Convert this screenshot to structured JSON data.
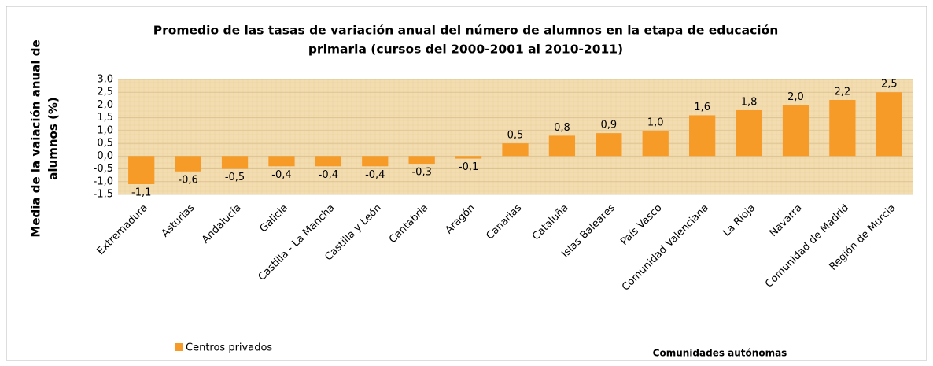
{
  "chart_data": {
    "type": "bar",
    "title": [
      "Promedio de las tasas de variación anual  del número  de alumnos en la etapa de educación",
      "primaria (cursos del 2000-2001 al 2010-2011)"
    ],
    "ylabel": [
      "Media de la vaiación anual de",
      "alumnos (%)"
    ],
    "xlabel": "Comunidades autónomas",
    "categories": [
      "Extremadura",
      "Asturias",
      "Andalucía",
      "Galicia",
      "Castilla -  La Mancha",
      "Castilla y León",
      "Cantabria",
      "Aragón",
      "Canarias",
      "Cataluña",
      "Islas Baleares",
      "País Vasco",
      "Comunidad Valenciana",
      "La Rioja",
      "Navarra",
      "Comunidad de Madrid",
      "Región de Murcia"
    ],
    "series": [
      {
        "name": "Centros privados",
        "color": "#f79b28",
        "values": [
          -1.1,
          -0.6,
          -0.5,
          -0.4,
          -0.4,
          -0.4,
          -0.3,
          -0.1,
          0.5,
          0.8,
          0.9,
          1.0,
          1.6,
          1.8,
          2.0,
          2.2,
          2.5
        ],
        "value_labels": [
          "-1,1",
          "-0,6",
          "-0,5",
          "-0,4",
          "-0,4",
          "-0,4",
          "-0,3",
          "-0,1",
          "0,5",
          "0,8",
          "0,9",
          "1,0",
          "1,6",
          "1,8",
          "2,0",
          "2,2",
          "2,5"
        ]
      }
    ],
    "ylim": [
      -1.5,
      3.0
    ],
    "yticks": [
      {
        "value": -1.5,
        "label": "-1,5"
      },
      {
        "value": -1.0,
        "label": "-1,0"
      },
      {
        "value": -0.5,
        "label": "-0,5"
      },
      {
        "value": 0,
        "label": "0,0"
      },
      {
        "value": 0.5,
        "label": "0,5"
      },
      {
        "value": 1.0,
        "label": "1,0"
      },
      {
        "value": 1.5,
        "label": "1,5"
      },
      {
        "value": 2.0,
        "label": "2,0"
      },
      {
        "value": 2.5,
        "label": "2,5"
      },
      {
        "value": 3.0,
        "label": "3,0"
      }
    ],
    "grid": true,
    "legend": "bottom-left"
  }
}
